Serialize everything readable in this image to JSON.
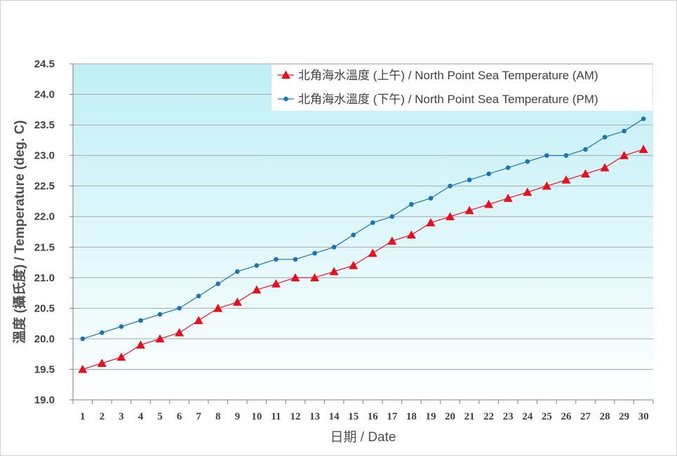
{
  "chart_data": {
    "type": "line",
    "title": "",
    "xlabel": "日期 / Date",
    "ylabel": "溫度 (攝氏度) / Temperature (deg. C)",
    "ylim": [
      19.0,
      24.5
    ],
    "ytick_step": 0.5,
    "grid": "horizontal",
    "legend_position": "top-right",
    "background_gradient": [
      "#bfeff6",
      "#ffffff"
    ],
    "x": [
      1,
      2,
      3,
      4,
      5,
      6,
      7,
      8,
      9,
      10,
      11,
      12,
      13,
      14,
      15,
      16,
      17,
      18,
      19,
      20,
      21,
      22,
      23,
      24,
      25,
      26,
      27,
      28,
      29,
      30
    ],
    "series": [
      {
        "name": "北角海水溫度 (上午) / North Point Sea Temperature (AM)",
        "color": "#e8101e",
        "marker": "triangle",
        "values": [
          19.5,
          19.6,
          19.7,
          19.9,
          20.0,
          20.1,
          20.3,
          20.5,
          20.6,
          20.8,
          20.9,
          21.0,
          21.0,
          21.1,
          21.2,
          21.4,
          21.6,
          21.7,
          21.9,
          22.0,
          22.1,
          22.2,
          22.3,
          22.4,
          22.5,
          22.6,
          22.7,
          22.8,
          23.0,
          23.1
        ]
      },
      {
        "name": "北角海水溫度 (下午) / North Point Sea Temperature (PM)",
        "color": "#1a72b8",
        "marker": "circle",
        "values": [
          20.0,
          20.1,
          20.2,
          20.3,
          20.4,
          20.5,
          20.7,
          20.9,
          21.1,
          21.2,
          21.3,
          21.3,
          21.4,
          21.5,
          21.7,
          21.9,
          22.0,
          22.2,
          22.3,
          22.5,
          22.6,
          22.7,
          22.8,
          22.9,
          23.0,
          23.0,
          23.1,
          23.3,
          23.4,
          23.6
        ]
      }
    ]
  }
}
